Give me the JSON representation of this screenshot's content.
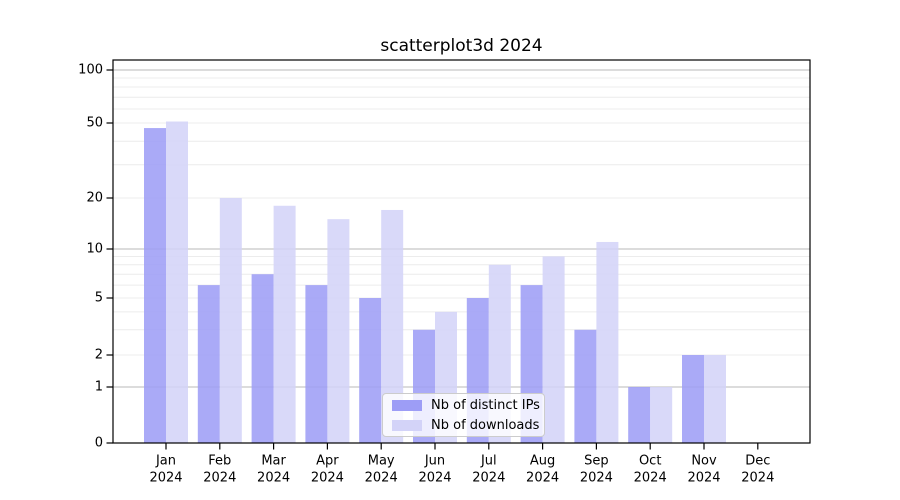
{
  "title": "scatterplot3d 2024",
  "legend": {
    "items": [
      {
        "label": "Nb of distinct IPs",
        "color": "#9d9df6"
      },
      {
        "label": "Nb of downloads",
        "color": "#d3d3f8"
      }
    ]
  },
  "chart_data": {
    "type": "bar",
    "title": "scatterplot3d 2024",
    "categories": [
      "Jan 2024",
      "Feb 2024",
      "Mar 2024",
      "Apr 2024",
      "May 2024",
      "Jun 2024",
      "Jul 2024",
      "Aug 2024",
      "Sep 2024",
      "Oct 2024",
      "Nov 2024",
      "Dec 2024"
    ],
    "months": [
      {
        "label": "Jan",
        "year": "2024"
      },
      {
        "label": "Feb",
        "year": "2024"
      },
      {
        "label": "Mar",
        "year": "2024"
      },
      {
        "label": "Apr",
        "year": "2024"
      },
      {
        "label": "May",
        "year": "2024"
      },
      {
        "label": "Jun",
        "year": "2024"
      },
      {
        "label": "Jul",
        "year": "2024"
      },
      {
        "label": "Aug",
        "year": "2024"
      },
      {
        "label": "Sep",
        "year": "2024"
      },
      {
        "label": "Oct",
        "year": "2024"
      },
      {
        "label": "Nov",
        "year": "2024"
      },
      {
        "label": "Dec",
        "year": "2024"
      }
    ],
    "series": [
      {
        "name": "Nb of distinct IPs",
        "color": "#9d9df6",
        "values": [
          47,
          6,
          7,
          6,
          5,
          3,
          5,
          6,
          3,
          1,
          2,
          0
        ]
      },
      {
        "name": "Nb of downloads",
        "color": "#d3d3f8",
        "values": [
          51,
          20,
          18,
          15,
          17,
          4,
          8,
          9,
          11,
          1,
          2,
          0
        ]
      }
    ],
    "xlabel": "",
    "ylabel": "",
    "y_ticks": [
      0,
      1,
      2,
      5,
      10,
      20,
      50,
      100
    ],
    "y_tick_labels": [
      "0",
      "1",
      "2",
      "5",
      "10",
      "20",
      "50",
      "100"
    ],
    "ylim": [
      0,
      115
    ],
    "yscale": "symlog-like (linear 0-1, logarithmic above)",
    "grid": "horizontal; major gray lines at 1, 10, 100; faint minor log lines",
    "legend_position": "inside axes, lower center",
    "major_grid_values": [
      1,
      10,
      100
    ],
    "minor_grid_values": [
      2,
      3,
      4,
      5,
      6,
      7,
      8,
      9,
      20,
      30,
      40,
      50,
      60,
      70,
      80,
      90
    ],
    "colors": {
      "major_grid": "#b8b8b8",
      "minor_grid": "#ececec",
      "axis": "#000000",
      "background": "#ffffff"
    }
  }
}
